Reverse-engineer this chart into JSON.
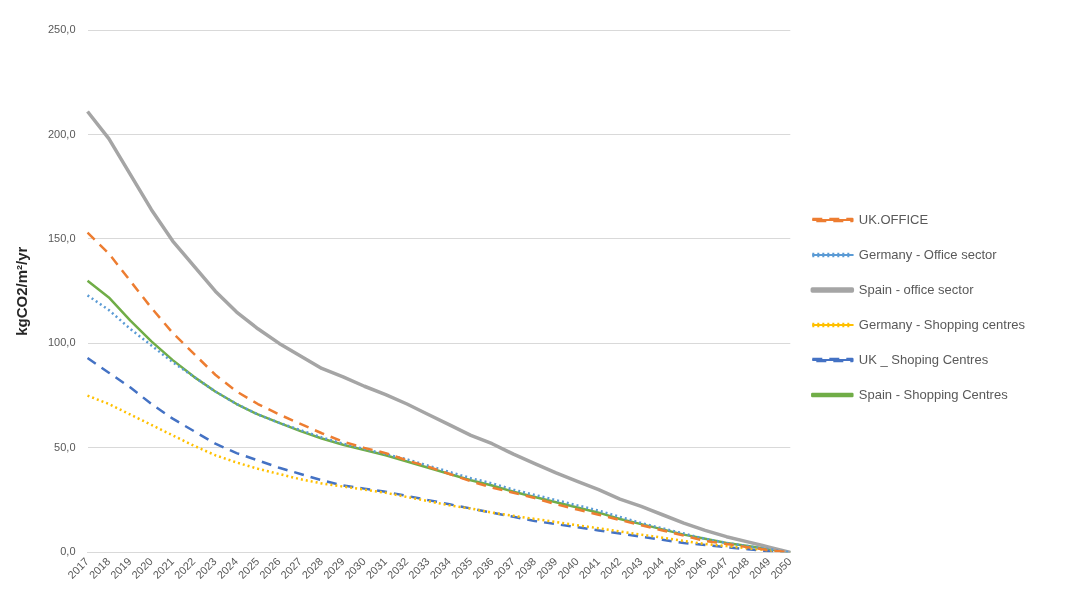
{
  "chart_data": {
    "type": "line",
    "ylabel": "kgCO2/m²/yr",
    "categories": [
      "2017",
      "2018",
      "2019",
      "2020",
      "2021",
      "2022",
      "2023",
      "2024",
      "2025",
      "2026",
      "2027",
      "2028",
      "2029",
      "2030",
      "2031",
      "2032",
      "2033",
      "2034",
      "2035",
      "2036",
      "2037",
      "2038",
      "2039",
      "2040",
      "2041",
      "2042",
      "2043",
      "2044",
      "2045",
      "2046",
      "2047",
      "2048",
      "2049",
      "2050"
    ],
    "ylim": [
      0,
      250
    ],
    "yticks": [
      {
        "value": 0,
        "label": "0,0"
      },
      {
        "value": 50,
        "label": "50,0"
      },
      {
        "value": 100,
        "label": "100,0"
      },
      {
        "value": 150,
        "label": "150,0"
      },
      {
        "value": 200,
        "label": "200,0"
      },
      {
        "value": 250,
        "label": "250,0"
      }
    ],
    "grid": "y",
    "legend": "right",
    "marker": "none",
    "series": [
      {
        "name": "UK.OFFICE",
        "color": "#ed7d31",
        "line_style": "dashed",
        "values": [
          153,
          143,
          130,
          117,
          105,
          95,
          85,
          77,
          71,
          66,
          61.5,
          57,
          53,
          50,
          47.5,
          44,
          41,
          37.5,
          34,
          31,
          28.5,
          26,
          23,
          20.5,
          18,
          15.5,
          13,
          10.5,
          8,
          5.5,
          4,
          2.5,
          1,
          0
        ]
      },
      {
        "name": "Germany - Office sector",
        "color": "#5b9bd5",
        "line_style": "dotted",
        "values": [
          123,
          116,
          107,
          99,
          91,
          84,
          77,
          71,
          66,
          62,
          58.5,
          55,
          52,
          49.5,
          47,
          44.5,
          41.5,
          38.5,
          35.5,
          33,
          30,
          27.5,
          25,
          22.5,
          20,
          17,
          14,
          11.5,
          9,
          6.5,
          4.5,
          3,
          1.5,
          0
        ]
      },
      {
        "name": "Spain - office sector",
        "color": "#a5a5a5",
        "line_style": "solid",
        "values": [
          211,
          198,
          181,
          164,
          149,
          137,
          125,
          115,
          107,
          100,
          94,
          88,
          84,
          79.5,
          75.5,
          71,
          66,
          61,
          56,
          52,
          47,
          42.5,
          38,
          34,
          30,
          25.5,
          22,
          18,
          14,
          10.5,
          7.5,
          5,
          2.5,
          0
        ]
      },
      {
        "name": "Germany - Shopping centres",
        "color": "#ffc000",
        "line_style": "dotted",
        "values": [
          75,
          71,
          66,
          61,
          56,
          51,
          46.5,
          43,
          40,
          37.5,
          35,
          33,
          31.5,
          30,
          28.5,
          26.5,
          24.5,
          22.5,
          21,
          19,
          17.5,
          16,
          14.5,
          13,
          11.5,
          10,
          8.5,
          7,
          5.5,
          4,
          3,
          2,
          1,
          0
        ]
      },
      {
        "name": "UK _ Shoping Centres",
        "color": "#4472c4",
        "line_style": "dashed",
        "values": [
          93,
          86,
          79,
          71,
          64,
          58,
          52,
          47.5,
          44,
          40.5,
          37.5,
          34.5,
          32,
          30.5,
          29,
          27,
          25,
          23,
          21,
          19,
          17,
          15,
          13.5,
          12,
          10.5,
          9,
          7.5,
          6,
          4.5,
          3.5,
          2.5,
          1.5,
          0.5,
          0
        ]
      },
      {
        "name": "Spain - Shopping Centres",
        "color": "#70ad47",
        "line_style": "solid",
        "values": [
          130,
          122,
          111,
          101,
          92,
          84,
          77,
          71,
          66,
          62,
          58,
          54.5,
          51.5,
          49,
          46.5,
          43.5,
          40.5,
          37.5,
          34.5,
          32,
          29,
          26.5,
          24,
          21.5,
          19,
          16,
          13.5,
          11,
          8.5,
          6.5,
          4.5,
          3,
          1.5,
          0
        ]
      }
    ]
  }
}
